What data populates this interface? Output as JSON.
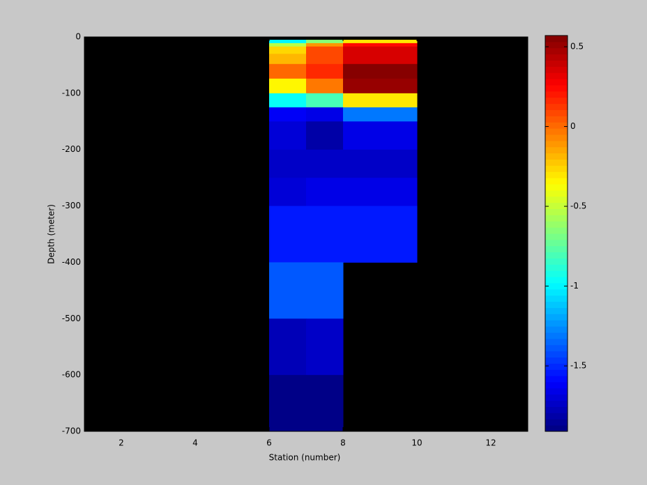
{
  "chart_data": {
    "type": "heatmap",
    "x_label": "Station (number)",
    "y_label": "Depth (meter)",
    "x_edges": [
      6,
      7,
      8,
      10
    ],
    "y_edges": [
      -5,
      -11,
      -17,
      -30,
      -48,
      -74,
      -100,
      -125,
      -150,
      -200,
      -250,
      -300,
      -400,
      -500,
      -600,
      -700
    ],
    "values": [
      [
        -1.0,
        -0.65,
        -0.3
      ],
      [
        -0.55,
        -0.1,
        0.25
      ],
      [
        -0.25,
        0.1,
        0.35
      ],
      [
        -0.2,
        0.1,
        0.35
      ],
      [
        0.0,
        0.15,
        0.55
      ],
      [
        -0.35,
        -0.05,
        0.5
      ],
      [
        -0.95,
        -0.8,
        -0.3
      ],
      [
        -1.6,
        -1.65,
        -1.3
      ],
      [
        -1.7,
        -1.8,
        -1.65
      ],
      [
        -1.75,
        -1.75,
        -1.72
      ],
      [
        -1.7,
        -1.65,
        -1.65
      ],
      [
        -1.55,
        -1.55,
        -1.55
      ],
      [
        -1.4,
        -1.4,
        null
      ],
      [
        -1.78,
        -1.72,
        null
      ],
      [
        -1.9,
        -1.9,
        null
      ]
    ],
    "colormap": "jet",
    "nan_color": "#000000",
    "clim": [
      -1.91,
      0.57
    ],
    "xlim": [
      1,
      13
    ],
    "xticks": [
      2,
      4,
      6,
      8,
      10,
      12
    ],
    "ylim": [
      -700,
      0
    ],
    "yticks": [
      0,
      -100,
      -200,
      -300,
      -400,
      -500,
      -600,
      -700
    ],
    "cticks": [
      0.5,
      0,
      -0.5,
      -1,
      -1.5
    ]
  }
}
